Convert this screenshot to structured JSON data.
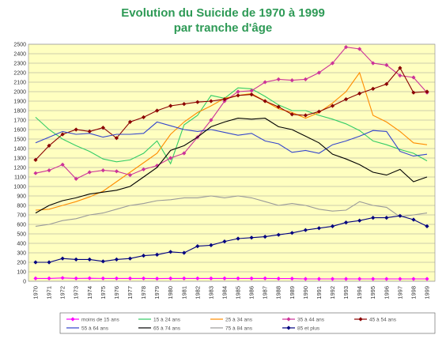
{
  "chart_data": {
    "type": "line",
    "title_lines": [
      "Evolution du Suicide de 1970 à 1999",
      "par tranche d'âge"
    ],
    "xlabel": "",
    "ylabel": "",
    "ylim": [
      0,
      2500
    ],
    "yticks": [
      0,
      100,
      200,
      300,
      400,
      500,
      600,
      700,
      800,
      900,
      1000,
      1100,
      1200,
      1300,
      1400,
      1500,
      1600,
      1700,
      1800,
      1900,
      2000,
      2100,
      2200,
      2300,
      2400,
      2500
    ],
    "categories": [
      "1970",
      "1971",
      "1972",
      "1973",
      "1974",
      "1975",
      "1976",
      "1977",
      "1978",
      "1979",
      "1980",
      "1981",
      "1982",
      "1983",
      "1984",
      "1985",
      "1986",
      "1987",
      "1988",
      "1989",
      "1990",
      "1991",
      "1992",
      "1993",
      "1994",
      "1995",
      "1996",
      "1997",
      "1998",
      "1999"
    ],
    "grid": true,
    "background_color": "#ffffc0",
    "legend_position": "bottom",
    "series": [
      {
        "name": "moins de 15 ans",
        "color": "#ff00ff",
        "marker": "diamond",
        "values": [
          30,
          30,
          35,
          30,
          32,
          30,
          30,
          30,
          30,
          28,
          30,
          30,
          30,
          30,
          30,
          30,
          30,
          30,
          28,
          28,
          25,
          25,
          25,
          25,
          25,
          25,
          25,
          25,
          25,
          25
        ]
      },
      {
        "name": "15 à 24 ans",
        "color": "#33cc66",
        "marker": "none",
        "values": [
          1730,
          1600,
          1500,
          1430,
          1370,
          1290,
          1260,
          1280,
          1350,
          1480,
          1240,
          1650,
          1750,
          1960,
          1930,
          2040,
          2030,
          1950,
          1860,
          1800,
          1800,
          1750,
          1710,
          1660,
          1590,
          1480,
          1440,
          1390,
          1350,
          1270
        ]
      },
      {
        "name": "25 à 34 ans",
        "color": "#ff8c00",
        "marker": "none",
        "values": [
          750,
          760,
          800,
          840,
          890,
          950,
          1050,
          1150,
          1250,
          1350,
          1550,
          1680,
          1780,
          1850,
          1930,
          1960,
          1980,
          1900,
          1820,
          1780,
          1720,
          1780,
          1880,
          2000,
          2200,
          1750,
          1680,
          1580,
          1460,
          1440
        ]
      },
      {
        "name": "35 à 44 ans",
        "color": "#cc3399",
        "marker": "diamond",
        "values": [
          1140,
          1170,
          1230,
          1080,
          1150,
          1170,
          1160,
          1120,
          1180,
          1220,
          1300,
          1350,
          1520,
          1700,
          1900,
          2000,
          2010,
          2100,
          2130,
          2120,
          2130,
          2200,
          2300,
          2470,
          2450,
          2300,
          2280,
          2170,
          2150,
          1990
        ]
      },
      {
        "name": "45 à 54 ans",
        "color": "#8b0000",
        "marker": "diamond",
        "values": [
          1280,
          1430,
          1550,
          1600,
          1580,
          1620,
          1510,
          1680,
          1730,
          1800,
          1850,
          1870,
          1890,
          1900,
          1920,
          1960,
          1970,
          1900,
          1840,
          1760,
          1750,
          1790,
          1850,
          1920,
          1980,
          2030,
          2080,
          2250,
          1990,
          2000
        ]
      },
      {
        "name": "55 à 64 ans",
        "color": "#3344cc",
        "marker": "none",
        "values": [
          1460,
          1520,
          1580,
          1550,
          1560,
          1520,
          1550,
          1550,
          1560,
          1680,
          1640,
          1600,
          1580,
          1600,
          1570,
          1540,
          1560,
          1480,
          1450,
          1360,
          1380,
          1350,
          1440,
          1480,
          1530,
          1590,
          1580,
          1370,
          1320,
          1340
        ]
      },
      {
        "name": "65 à 74 ans",
        "color": "#000000",
        "marker": "none",
        "values": [
          720,
          800,
          850,
          880,
          920,
          940,
          960,
          1000,
          1100,
          1200,
          1380,
          1430,
          1520,
          1630,
          1680,
          1720,
          1710,
          1720,
          1630,
          1600,
          1530,
          1460,
          1340,
          1290,
          1230,
          1150,
          1120,
          1180,
          1050,
          1100
        ]
      },
      {
        "name": "75 à 84  ans",
        "color": "#999999",
        "marker": "none",
        "values": [
          580,
          600,
          640,
          660,
          700,
          720,
          760,
          800,
          820,
          850,
          860,
          880,
          880,
          900,
          880,
          900,
          880,
          840,
          800,
          820,
          800,
          760,
          740,
          750,
          840,
          800,
          780,
          680,
          700,
          720
        ]
      },
      {
        "name": "85 et plus",
        "color": "#000080",
        "marker": "diamond",
        "values": [
          200,
          200,
          240,
          230,
          230,
          210,
          230,
          240,
          270,
          280,
          310,
          300,
          370,
          380,
          420,
          450,
          460,
          470,
          490,
          510,
          540,
          560,
          580,
          620,
          640,
          670,
          670,
          690,
          650,
          580
        ]
      }
    ]
  }
}
